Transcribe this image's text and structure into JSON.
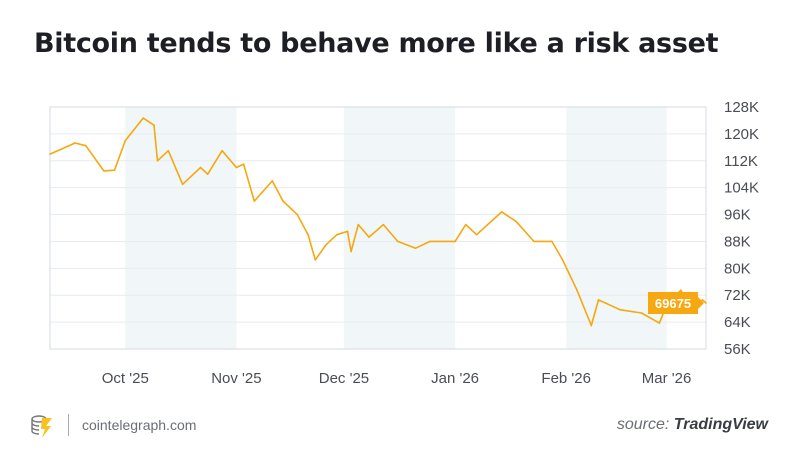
{
  "title": "Bitcoin tends to behave more like a risk asset",
  "footer": {
    "site": "cointelegraph.com",
    "source_prefix": "source:",
    "source_name": "TradingView"
  },
  "colors": {
    "line": "#F7A70F",
    "badge": "#F7A70F",
    "band": "#F1F6F8",
    "grid": "#E8ECEF"
  },
  "chart_data": {
    "type": "line",
    "title": "Bitcoin tends to behave more like a risk asset",
    "xlabel": "",
    "ylabel": "",
    "ylim": [
      56000,
      128000
    ],
    "yticks": [
      "128K",
      "120K",
      "112K",
      "104K",
      "96K",
      "88K",
      "80K",
      "72K",
      "64K",
      "56K"
    ],
    "ytick_values": [
      128000,
      120000,
      112000,
      104000,
      96000,
      88000,
      80000,
      72000,
      64000,
      56000
    ],
    "xticks": [
      "Oct '25",
      "Nov '25",
      "Dec '25",
      "Jan '26",
      "Feb '26",
      "Mar '26"
    ],
    "xtick_dates": [
      "2025-10-01",
      "2025-11-01",
      "2025-12-01",
      "2026-01-01",
      "2026-02-01",
      "2026-03-01"
    ],
    "xlim": [
      "2025-09-10",
      "2026-03-12"
    ],
    "shaded_months": [
      [
        "2025-10-01",
        "2025-11-01"
      ],
      [
        "2025-12-01",
        "2026-01-01"
      ],
      [
        "2026-02-01",
        "2026-03-01"
      ]
    ],
    "grid": true,
    "last_price_label": "69675",
    "series": [
      {
        "points": [
          [
            "2025-09-10",
            114000
          ],
          [
            "2025-09-17",
            117300
          ],
          [
            "2025-09-20",
            116500
          ],
          [
            "2025-09-25",
            109000
          ],
          [
            "2025-09-28",
            109200
          ],
          [
            "2025-10-01",
            118000
          ],
          [
            "2025-10-06",
            124700
          ],
          [
            "2025-10-09",
            122600
          ],
          [
            "2025-10-10",
            112000
          ],
          [
            "2025-10-13",
            115000
          ],
          [
            "2025-10-17",
            105000
          ],
          [
            "2025-10-22",
            110000
          ],
          [
            "2025-10-24",
            108000
          ],
          [
            "2025-10-28",
            115000
          ],
          [
            "2025-11-01",
            110000
          ],
          [
            "2025-11-03",
            111000
          ],
          [
            "2025-11-06",
            100000
          ],
          [
            "2025-11-11",
            106000
          ],
          [
            "2025-11-14",
            100000
          ],
          [
            "2025-11-18",
            96000
          ],
          [
            "2025-11-21",
            90000
          ],
          [
            "2025-11-23",
            82500
          ],
          [
            "2025-11-26",
            87000
          ],
          [
            "2025-11-29",
            90000
          ],
          [
            "2025-12-02",
            91000
          ],
          [
            "2025-12-03",
            85000
          ],
          [
            "2025-12-05",
            93000
          ],
          [
            "2025-12-08",
            89300
          ],
          [
            "2025-12-12",
            93000
          ],
          [
            "2025-12-16",
            88000
          ],
          [
            "2025-12-21",
            86000
          ],
          [
            "2025-12-25",
            88000
          ],
          [
            "2026-01-01",
            88000
          ],
          [
            "2026-01-04",
            93000
          ],
          [
            "2026-01-07",
            90000
          ],
          [
            "2026-01-14",
            96800
          ],
          [
            "2026-01-18",
            94000
          ],
          [
            "2026-01-23",
            88000
          ],
          [
            "2026-01-28",
            88000
          ],
          [
            "2026-01-31",
            82500
          ],
          [
            "2026-02-04",
            73500
          ],
          [
            "2026-02-08",
            63000
          ],
          [
            "2026-02-10",
            70600
          ],
          [
            "2026-02-16",
            67700
          ],
          [
            "2026-02-22",
            66700
          ],
          [
            "2026-02-27",
            63700
          ],
          [
            "2026-03-01",
            69000
          ],
          [
            "2026-03-05",
            73500
          ],
          [
            "2026-03-08",
            67500
          ],
          [
            "2026-03-11",
            70600
          ],
          [
            "2026-03-12",
            69675
          ]
        ]
      }
    ]
  }
}
